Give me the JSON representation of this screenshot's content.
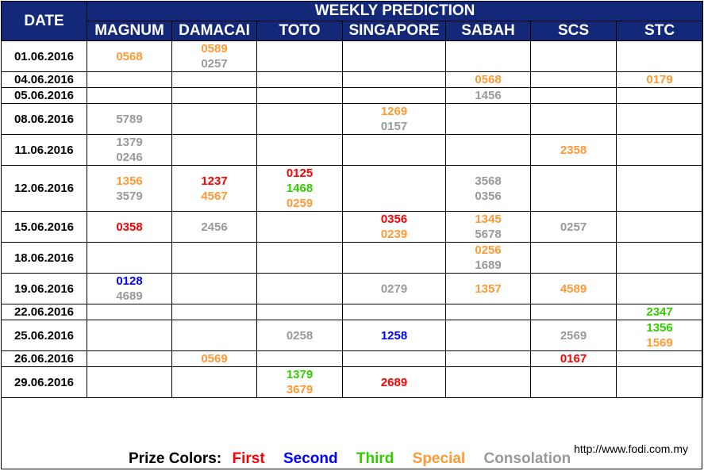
{
  "header": {
    "date_label": "DATE",
    "title": "WEEKLY PREDICTION"
  },
  "columns": [
    "MAGNUM",
    "DAMACAI",
    "TOTO",
    "SINGAPORE",
    "SABAH",
    "SCS",
    "STC"
  ],
  "colors": {
    "first": "#ff0000",
    "second": "#0000ff",
    "third": "#33cc00",
    "special": "#ff9933",
    "consolation": "#999999",
    "header_bg": "#14287a"
  },
  "rows": [
    {
      "date": "01.06.2016",
      "cells": [
        [
          {
            "n": "0568",
            "p": "special"
          }
        ],
        [
          {
            "n": "0589",
            "p": "special"
          },
          {
            "n": "0257",
            "p": "consolation"
          }
        ],
        [],
        [],
        [],
        [],
        []
      ]
    },
    {
      "date": "04.06.2016",
      "cells": [
        [],
        [],
        [],
        [],
        [
          {
            "n": "0568",
            "p": "special"
          }
        ],
        [],
        [
          {
            "n": "0179",
            "p": "special"
          }
        ]
      ]
    },
    {
      "date": "05.06.2016",
      "cells": [
        [],
        [],
        [],
        [],
        [
          {
            "n": "1456",
            "p": "consolation"
          }
        ],
        [],
        []
      ]
    },
    {
      "date": "08.06.2016",
      "cells": [
        [
          {
            "n": "5789",
            "p": "consolation"
          }
        ],
        [],
        [],
        [
          {
            "n": "1269",
            "p": "special"
          },
          {
            "n": "0157",
            "p": "consolation"
          }
        ],
        [],
        [],
        []
      ]
    },
    {
      "date": "11.06.2016",
      "cells": [
        [
          {
            "n": "1379",
            "p": "consolation"
          },
          {
            "n": "0246",
            "p": "consolation"
          }
        ],
        [],
        [],
        [],
        [],
        [
          {
            "n": "2358",
            "p": "special"
          }
        ],
        []
      ]
    },
    {
      "date": "12.06.2016",
      "cells": [
        [
          {
            "n": "1356",
            "p": "special"
          },
          {
            "n": "3579",
            "p": "consolation"
          }
        ],
        [
          {
            "n": "1237",
            "p": "first"
          },
          {
            "n": "4567",
            "p": "special"
          }
        ],
        [
          {
            "n": "0125",
            "p": "first"
          },
          {
            "n": "1468",
            "p": "third"
          },
          {
            "n": "0259",
            "p": "special"
          }
        ],
        [],
        [
          {
            "n": "3568",
            "p": "consolation"
          },
          {
            "n": "0356",
            "p": "consolation"
          }
        ],
        [],
        []
      ]
    },
    {
      "date": "15.06.2016",
      "cells": [
        [
          {
            "n": "0358",
            "p": "first"
          }
        ],
        [
          {
            "n": "2456",
            "p": "consolation"
          }
        ],
        [],
        [
          {
            "n": "0356",
            "p": "first"
          },
          {
            "n": "0239",
            "p": "special"
          }
        ],
        [
          {
            "n": "1345",
            "p": "special"
          },
          {
            "n": "5678",
            "p": "consolation"
          }
        ],
        [
          {
            "n": "0257",
            "p": "consolation"
          }
        ],
        []
      ]
    },
    {
      "date": "18.06.2016",
      "cells": [
        [],
        [],
        [],
        [],
        [
          {
            "n": "0256",
            "p": "special"
          },
          {
            "n": "1689",
            "p": "consolation"
          }
        ],
        [],
        []
      ]
    },
    {
      "date": "19.06.2016",
      "cells": [
        [
          {
            "n": "0128",
            "p": "second"
          },
          {
            "n": "4689",
            "p": "consolation"
          }
        ],
        [],
        [],
        [
          {
            "n": "0279",
            "p": "consolation"
          }
        ],
        [
          {
            "n": "1357",
            "p": "special"
          }
        ],
        [
          {
            "n": "4589",
            "p": "special"
          }
        ],
        []
      ]
    },
    {
      "date": "22.06.2016",
      "cells": [
        [],
        [],
        [],
        [],
        [],
        [],
        [
          {
            "n": "2347",
            "p": "third"
          }
        ]
      ]
    },
    {
      "date": "25.06.2016",
      "cells": [
        [],
        [],
        [
          {
            "n": "0258",
            "p": "consolation"
          }
        ],
        [
          {
            "n": "1258",
            "p": "second"
          }
        ],
        [],
        [
          {
            "n": "2569",
            "p": "consolation"
          }
        ],
        [
          {
            "n": "1356",
            "p": "third"
          },
          {
            "n": "1569",
            "p": "special"
          }
        ]
      ]
    },
    {
      "date": "26.06.2016",
      "cells": [
        [],
        [
          {
            "n": "0569",
            "p": "special"
          }
        ],
        [],
        [],
        [],
        [
          {
            "n": "0167",
            "p": "first"
          }
        ],
        []
      ]
    },
    {
      "date": "29.06.2016",
      "cells": [
        [],
        [],
        [
          {
            "n": "1379",
            "p": "third"
          },
          {
            "n": "3679",
            "p": "special"
          }
        ],
        [
          {
            "n": "2689",
            "p": "first"
          }
        ],
        [],
        [],
        []
      ]
    }
  ],
  "footer": {
    "legend_label": "Prize Colors:",
    "legend": {
      "first": "First",
      "second": "Second",
      "third": "Third",
      "special": "Special",
      "consolation": "Consolation"
    },
    "url": "http://www.fodi.com.my"
  }
}
